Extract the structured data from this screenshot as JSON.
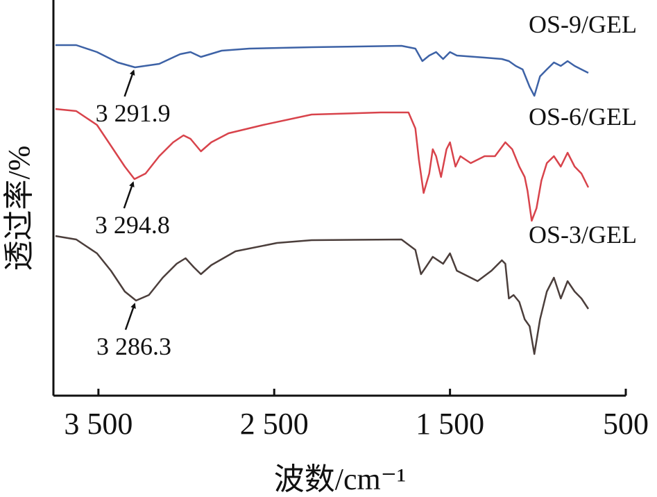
{
  "chart_data": {
    "type": "line",
    "xlabel": "波数/cm⁻¹",
    "ylabel": "透过率/%",
    "xlim": [
      3756,
      500
    ],
    "xticks": [
      {
        "value": 3500,
        "label": "3 500"
      },
      {
        "value": 2500,
        "label": "2 500"
      },
      {
        "value": 1500,
        "label": "1 500"
      },
      500
    ],
    "ylim": [
      0,
      570
    ],
    "series": [
      {
        "name": "OS-9/GEL",
        "color": "#3d62a6",
        "peak_label": "3 291.9",
        "peak_x": 3291.9,
        "x": [
          3744,
          3626,
          3508,
          3390,
          3292,
          3154,
          3035,
          2976,
          2917,
          2799,
          2642,
          2287,
          1776,
          1697,
          1657,
          1618,
          1579,
          1539,
          1500,
          1461,
          1303,
          1205,
          1165,
          1126,
          1087,
          1047,
          1020,
          988,
          949,
          909,
          870,
          831,
          791,
          752,
          713
        ],
        "values": [
          505,
          505,
          495,
          480,
          473,
          478,
          492,
          495,
          488,
          497,
          500,
          502,
          504,
          500,
          482,
          490,
          495,
          485,
          495,
          490,
          487,
          485,
          482,
          475,
          470,
          445,
          432,
          460,
          470,
          480,
          475,
          482,
          475,
          470,
          465
        ]
      },
      {
        "name": "OS-6/GEL",
        "color": "#d8434b",
        "peak_label": "3 294.8",
        "peak_x": 3294.8,
        "x": [
          3744,
          3626,
          3508,
          3429,
          3350,
          3295,
          3232,
          3154,
          3075,
          3016,
          2976,
          2917,
          2858,
          2760,
          2563,
          2287,
          1894,
          1736,
          1697,
          1677,
          1650,
          1618,
          1598,
          1579,
          1551,
          1520,
          1500,
          1469,
          1441,
          1382,
          1303,
          1244,
          1185,
          1146,
          1106,
          1075,
          1059,
          1035,
          1008,
          980,
          949,
          909,
          870,
          831,
          791,
          752,
          713
        ],
        "values": [
          413,
          410,
          390,
          360,
          330,
          312,
          320,
          345,
          365,
          375,
          370,
          352,
          365,
          378,
          390,
          405,
          408,
          408,
          385,
          340,
          292,
          320,
          355,
          345,
          315,
          355,
          365,
          330,
          345,
          335,
          345,
          345,
          365,
          355,
          330,
          315,
          295,
          252,
          270,
          310,
          335,
          345,
          330,
          350,
          330,
          320,
          300
        ]
      },
      {
        "name": "OS-3/GEL",
        "color": "#4b3e3b",
        "peak_label": "3 286.3",
        "peak_x": 3286.3,
        "x": [
          3744,
          3626,
          3508,
          3429,
          3350,
          3286,
          3213,
          3134,
          3055,
          3004,
          2957,
          2917,
          2858,
          2720,
          2484,
          2287,
          1776,
          1697,
          1665,
          1638,
          1598,
          1539,
          1500,
          1461,
          1343,
          1264,
          1205,
          1185,
          1165,
          1138,
          1106,
          1075,
          1047,
          1020,
          988,
          949,
          909,
          870,
          831,
          791,
          752,
          713
        ],
        "values": [
          230,
          225,
          205,
          180,
          150,
          137,
          145,
          170,
          190,
          198,
          185,
          175,
          188,
          208,
          220,
          224,
          225,
          210,
          175,
          185,
          200,
          190,
          205,
          180,
          165,
          180,
          195,
          190,
          140,
          145,
          135,
          110,
          100,
          60,
          110,
          150,
          170,
          140,
          165,
          150,
          140,
          125
        ]
      }
    ]
  }
}
